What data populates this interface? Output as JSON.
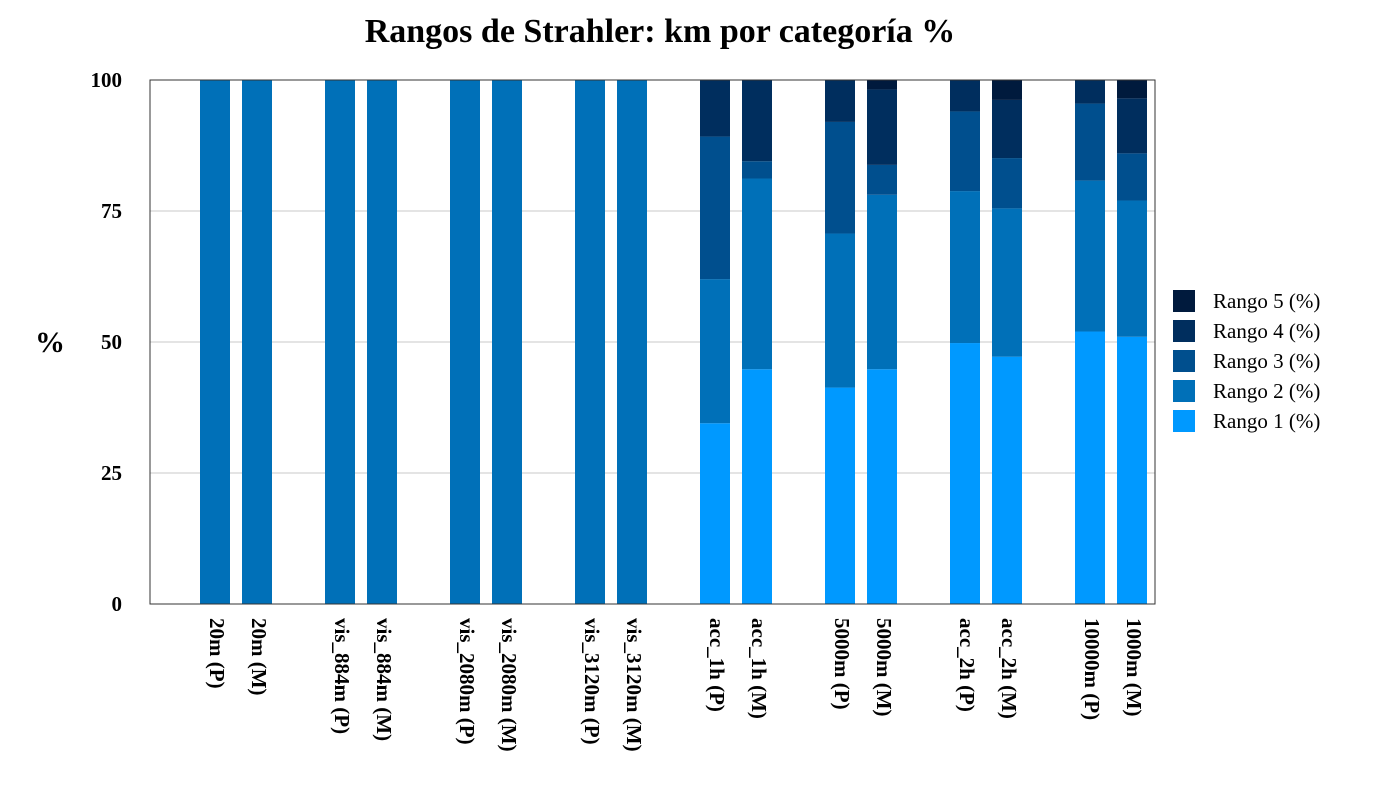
{
  "chart_data": {
    "type": "bar",
    "stacked": true,
    "title": "Rangos de Strahler: km por categoría %",
    "xlabel": "",
    "ylabel": "%",
    "ylim": [
      0,
      100
    ],
    "yticks": [
      "0",
      "25",
      "50",
      "75",
      "100"
    ],
    "grid": true,
    "legend_position": "right",
    "categories": [
      "20m (P)",
      "20m (M)",
      "vis_884m (P)",
      "vis_884m (M)",
      "vis_2080m (P)",
      "vis_2080m (M)",
      "vis_3120m (P)",
      "vis_3120m (M)",
      "acc_1h (P)",
      "acc_1h (M)",
      "5000m (P)",
      "5000m (M)",
      "acc_2h (P)",
      "acc_2h (M)",
      "10000m (P)",
      "1000m (M)"
    ],
    "series": [
      {
        "name": "Rango 1 (%)",
        "color": "#0099ff",
        "values": [
          0,
          0,
          0,
          0,
          0,
          0,
          0,
          0,
          34.5,
          44.8,
          41.3,
          44.8,
          49.8,
          47.2,
          52.0,
          51.0
        ]
      },
      {
        "name": "Rango 2 (%)",
        "color": "#0070b8",
        "values": [
          100,
          100,
          100,
          100,
          100,
          100,
          100,
          100,
          27.5,
          36.4,
          29.4,
          33.3,
          29.0,
          28.3,
          28.8,
          26.0
        ]
      },
      {
        "name": "Rango 3 (%)",
        "color": "#004f8e",
        "values": [
          0,
          0,
          0,
          0,
          0,
          0,
          0,
          0,
          27.2,
          3.3,
          21.3,
          5.7,
          15.2,
          9.6,
          14.7,
          9.0
        ]
      },
      {
        "name": "Rango 4 (%)",
        "color": "#002e5e",
        "values": [
          0,
          0,
          0,
          0,
          0,
          0,
          0,
          0,
          10.8,
          15.5,
          8.0,
          14.4,
          6.0,
          11.1,
          4.5,
          10.5
        ]
      },
      {
        "name": "Rango 5 (%)",
        "color": "#001a3d",
        "values": [
          0,
          0,
          0,
          0,
          0,
          0,
          0,
          0,
          0,
          0,
          0,
          1.8,
          0,
          3.8,
          0,
          3.5
        ]
      }
    ]
  }
}
